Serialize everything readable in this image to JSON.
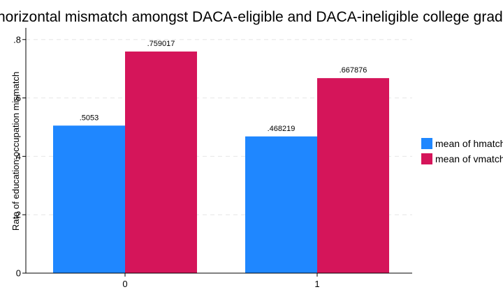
{
  "chart_data": {
    "type": "bar",
    "title": "horizontal mismatch amongst DACA-eligible and DACA-ineligible college graduates",
    "xlabel": "",
    "ylabel": "Rate of education-occupation mismatch",
    "categories": [
      "0",
      "1"
    ],
    "series": [
      {
        "name": "mean of hmatch",
        "values": [
          0.5053,
          0.468219
        ],
        "labels": [
          ".5053",
          ".468219"
        ],
        "color": "#1f87ff"
      },
      {
        "name": "mean of vmatch",
        "values": [
          0.759017,
          0.667876
        ],
        "labels": [
          ".759017",
          ".667876"
        ],
        "color": "#d5155a"
      }
    ],
    "ylim": [
      0,
      0.84
    ],
    "yticks": [
      0,
      0.2,
      0.4,
      0.6,
      0.8
    ],
    "ytick_labels": [
      "0",
      ".2",
      ".4",
      ".6",
      ".8"
    ],
    "grid": true,
    "legend_position": "right"
  }
}
